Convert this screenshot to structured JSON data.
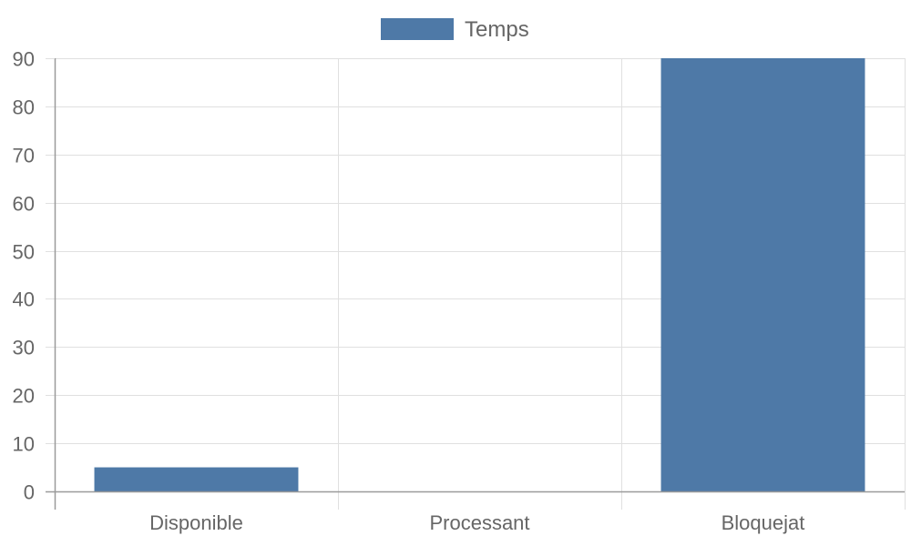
{
  "chart_data": {
    "type": "bar",
    "categories": [
      "Disponible",
      "Processant",
      "Bloquejat"
    ],
    "series": [
      {
        "name": "Temps",
        "values": [
          5,
          0,
          90
        ],
        "color": "#4e79a7"
      }
    ],
    "ylim": [
      0,
      90
    ],
    "yticks": [
      0,
      10,
      20,
      30,
      40,
      50,
      60,
      70,
      80,
      90
    ],
    "grid": true,
    "legend": "top-center"
  }
}
